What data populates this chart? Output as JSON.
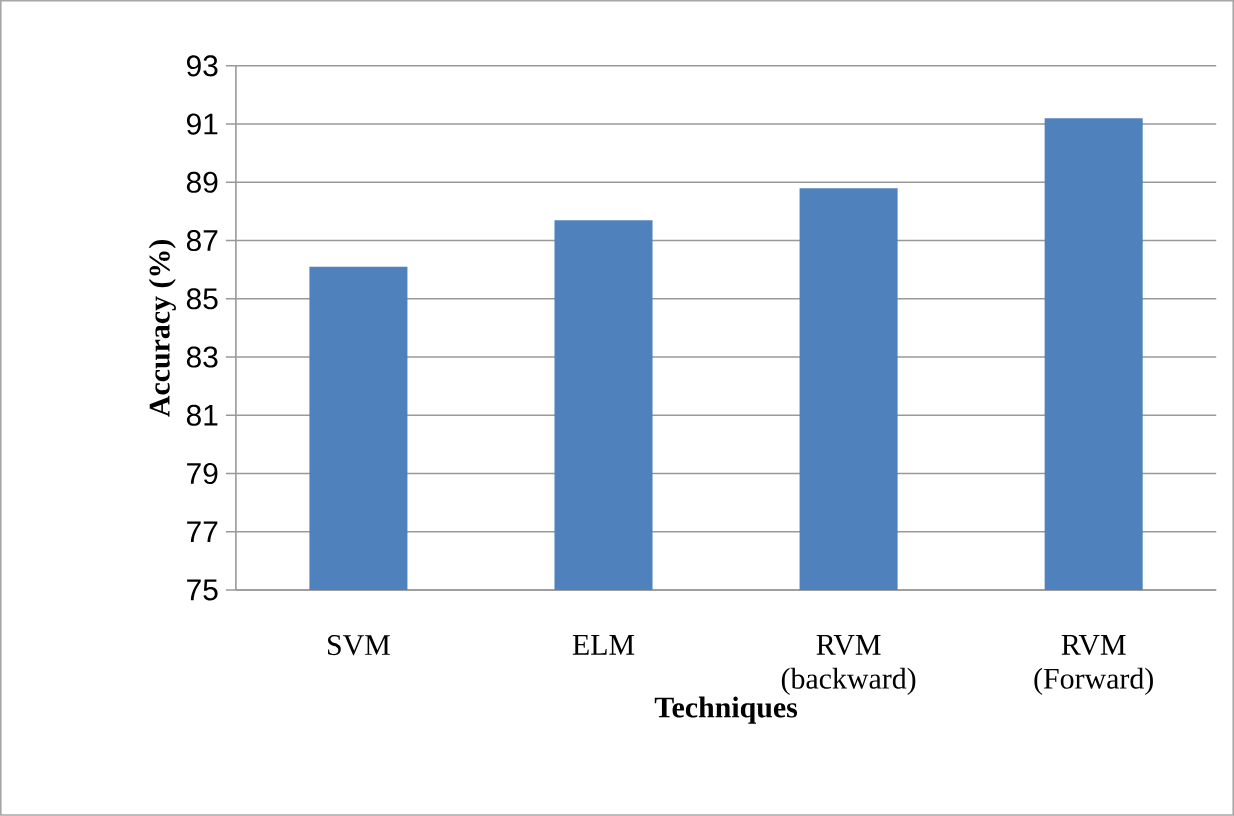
{
  "chart_data": {
    "type": "bar",
    "xlabel": "Techniques",
    "ylabel": "Accuracy (%)",
    "categories": [
      "SVM",
      "ELM",
      "RVM (backward)",
      "RVM (Forward)"
    ],
    "values": [
      86.1,
      87.7,
      88.8,
      91.2
    ],
    "color": "#4f81bd",
    "ylim": [
      75,
      93
    ],
    "yticks": [
      75,
      77,
      79,
      81,
      83,
      85,
      87,
      89,
      91,
      93
    ],
    "grid": "y"
  }
}
